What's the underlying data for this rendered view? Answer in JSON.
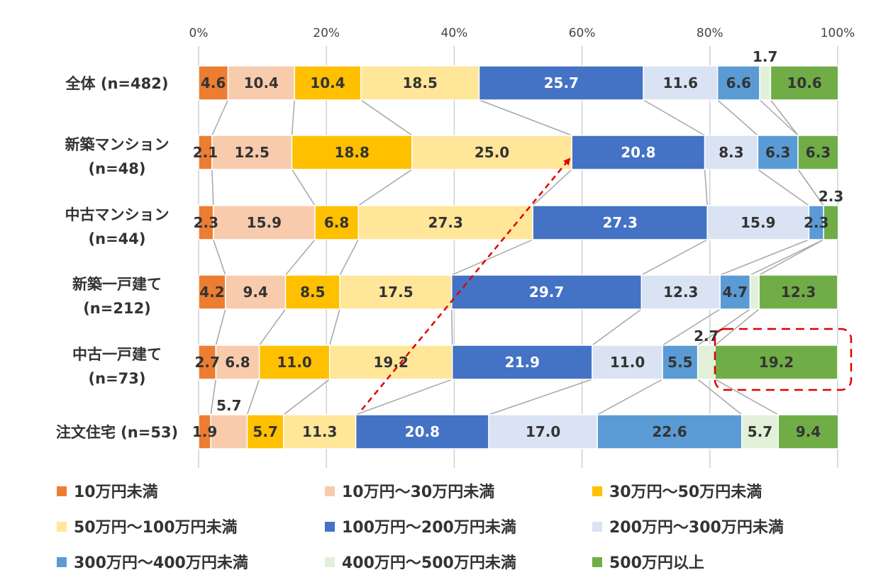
{
  "chart_data": {
    "type": "bar",
    "orientation": "horizontal",
    "stacked": "percent",
    "xlim": [
      0,
      100
    ],
    "xticks": [
      "0%",
      "20%",
      "40%",
      "60%",
      "80%",
      "100%"
    ],
    "grid": true,
    "legend_position": "bottom",
    "categories": [
      "全体 (n=482)",
      "新築マンション\n(n=48)",
      "中古マンション\n(n=44)",
      "新築一戸建て\n(n=212)",
      "中古一戸建て\n(n=73)",
      "注文住宅 (n=53)"
    ],
    "series": [
      {
        "name": "10万円未満",
        "color": "#ED7D31",
        "values": [
          4.6,
          2.1,
          2.3,
          4.2,
          2.7,
          1.9
        ],
        "labels": [
          "4.6",
          "2.1",
          "2.3",
          "4.2",
          "2.7",
          "1.9"
        ]
      },
      {
        "name": "10万円～30万円未満",
        "color": "#F8CBAD",
        "values": [
          10.4,
          12.5,
          15.9,
          9.4,
          6.8,
          5.7
        ],
        "labels": [
          "10.4",
          "12.5",
          "15.9",
          "9.4",
          "6.8",
          "5.7"
        ]
      },
      {
        "name": "30万円～50万円未満",
        "color": "#FFC000",
        "values": [
          10.4,
          18.8,
          6.8,
          8.5,
          11.0,
          5.7
        ],
        "labels": [
          "10.4",
          "18.8",
          "6.8",
          "8.5",
          "11.0",
          "5.7"
        ]
      },
      {
        "name": "50万円～100万円未満",
        "color": "#FFE699",
        "values": [
          18.5,
          25.0,
          27.3,
          17.5,
          19.2,
          11.3
        ],
        "labels": [
          "18.5",
          "25.0",
          "27.3",
          "17.5",
          "19.2",
          "11.3"
        ]
      },
      {
        "name": "100万円～200万円未満",
        "color": "#4472C4",
        "values": [
          25.7,
          20.8,
          27.3,
          29.7,
          21.9,
          20.8
        ],
        "labels": [
          "25.7",
          "20.8",
          "27.3",
          "29.7",
          "21.9",
          "20.8"
        ]
      },
      {
        "name": "200万円～300万円未満",
        "color": "#DAE3F3",
        "values": [
          11.6,
          8.3,
          15.9,
          12.3,
          11.0,
          17.0
        ],
        "labels": [
          "11.6",
          "8.3",
          "15.9",
          "12.3",
          "11.0",
          "17.0"
        ]
      },
      {
        "name": "300万円～400万円未満",
        "color": "#5B9BD5",
        "values": [
          6.6,
          6.3,
          2.3,
          4.7,
          5.5,
          22.6
        ],
        "labels": [
          "6.6",
          "6.3",
          "2.3",
          "4.7",
          "5.5",
          "22.6"
        ]
      },
      {
        "name": "400万円～500万円未満",
        "color": "#E2F0D9",
        "values": [
          1.7,
          0,
          0,
          1.4,
          2.7,
          5.7
        ],
        "labels": [
          "1.7",
          "",
          "",
          "",
          "2.7",
          "5.7"
        ]
      },
      {
        "name": "500万円以上",
        "color": "#70AD47",
        "values": [
          10.6,
          6.3,
          2.3,
          12.3,
          19.2,
          9.4
        ],
        "labels": [
          "10.6",
          "6.3",
          "2.3",
          "12.3",
          "19.2",
          "9.4"
        ]
      }
    ],
    "annotations": [
      {
        "type": "dashed-arrow",
        "color": "#E00000",
        "from_category": "注文住宅 (n=53)",
        "to_category": "新築マンション\n(n=48)"
      },
      {
        "type": "dashed-box",
        "color": "#E00000",
        "category": "中古一戸建て\n(n=73)",
        "series": "500万円以上"
      }
    ]
  }
}
